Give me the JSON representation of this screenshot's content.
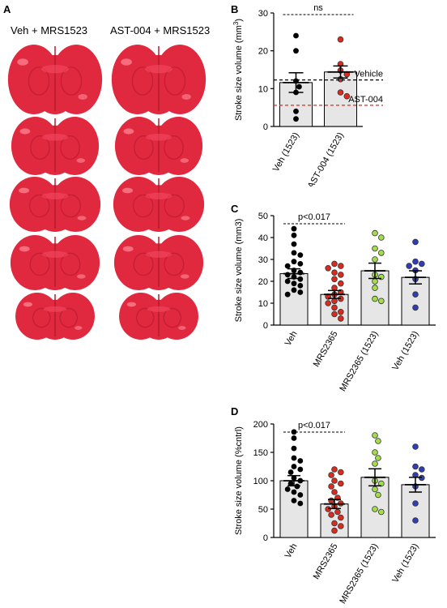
{
  "panel_a": {
    "letter": "A",
    "col_left_title": "Veh + MRS1523",
    "col_right_title": "AST-004 + MRS1523",
    "brain_color": "#e0283f"
  },
  "chart_data": [
    {
      "panel": "B",
      "type": "bar",
      "categories": [
        "Veh (1523)",
        "AST-004 (1523)"
      ],
      "ylabel": "Stroke size volume (mm3)",
      "ylabel_super": "3",
      "ylabel_base": "Stroke size volume (mm",
      "ylabel_end": ")",
      "ylim": [
        0,
        30
      ],
      "yticks": [
        0,
        10,
        20,
        30
      ],
      "means": [
        11.6,
        14.4
      ],
      "sems": [
        2.6,
        1.6
      ],
      "points": [
        [
          24.0,
          20.0,
          12.0,
          10.5,
          9.0,
          4.0,
          2.0
        ],
        [
          23.0,
          16.5,
          14.8,
          13.8,
          12.5,
          9.0,
          8.0
        ]
      ],
      "point_colors": [
        "#000000",
        "#d92c1f"
      ],
      "reference_lines": [
        {
          "label": "Vehicle",
          "value": 12.3,
          "color": "#000000"
        },
        {
          "label": "AST-004",
          "value": 5.6,
          "color": "#d92c1f"
        }
      ],
      "significance": {
        "label": "ns",
        "from": 0,
        "to": 1
      }
    },
    {
      "panel": "C",
      "type": "bar",
      "categories": [
        "Veh",
        "MRS2365",
        "MRS2365 (1523)",
        "Veh (1523)"
      ],
      "ylabel": "Stroke size volume (mm3)",
      "ylim": [
        0,
        50
      ],
      "yticks": [
        0,
        10,
        20,
        30,
        40,
        50
      ],
      "means": [
        23.5,
        14.0,
        24.8,
        21.8
      ],
      "sems": [
        2.2,
        1.8,
        3.5,
        3.0
      ],
      "points": [
        [
          44,
          41,
          37,
          33,
          32,
          29,
          28,
          27,
          25,
          24,
          23,
          22,
          21,
          20,
          19,
          18,
          16,
          15,
          14
        ],
        [
          28,
          27,
          26,
          24,
          23,
          21,
          19,
          17,
          15,
          14,
          13,
          12,
          11,
          10,
          8,
          6,
          5,
          3
        ],
        [
          42,
          40,
          35,
          33,
          30,
          23,
          22,
          20,
          17,
          12,
          11
        ],
        [
          38,
          29,
          28,
          27,
          25,
          21,
          14,
          8
        ]
      ],
      "point_colors": [
        "#000000",
        "#d92c1f",
        "#a4dd4c",
        "#2f3db8"
      ],
      "significance": {
        "label": "p<0.017",
        "from": 0,
        "to": 1
      }
    },
    {
      "panel": "D",
      "type": "bar",
      "categories": [
        "Veh",
        "MRS2365",
        "MRS2365 (1523)",
        "Veh (1523)"
      ],
      "ylabel": "Stroke size volume (%cntrl)",
      "ylim": [
        0,
        200
      ],
      "yticks": [
        0,
        50,
        100,
        150,
        200
      ],
      "means": [
        100,
        59,
        106,
        93
      ],
      "sems": [
        9,
        8,
        15,
        13
      ],
      "points": [
        [
          186,
          175,
          157,
          140,
          135,
          125,
          120,
          115,
          105,
          100,
          95,
          90,
          85,
          80,
          75,
          65,
          60
        ],
        [
          120,
          115,
          110,
          100,
          95,
          90,
          80,
          70,
          65,
          60,
          55,
          50,
          45,
          40,
          35,
          25,
          20,
          12
        ],
        [
          180,
          170,
          150,
          140,
          130,
          100,
          95,
          85,
          75,
          50,
          45
        ],
        [
          160,
          125,
          120,
          110,
          105,
          90,
          60,
          30
        ]
      ],
      "point_colors": [
        "#000000",
        "#d92c1f",
        "#a4dd4c",
        "#2f3db8"
      ],
      "significance": {
        "label": "p<0.017",
        "from": 0,
        "to": 1
      }
    }
  ]
}
